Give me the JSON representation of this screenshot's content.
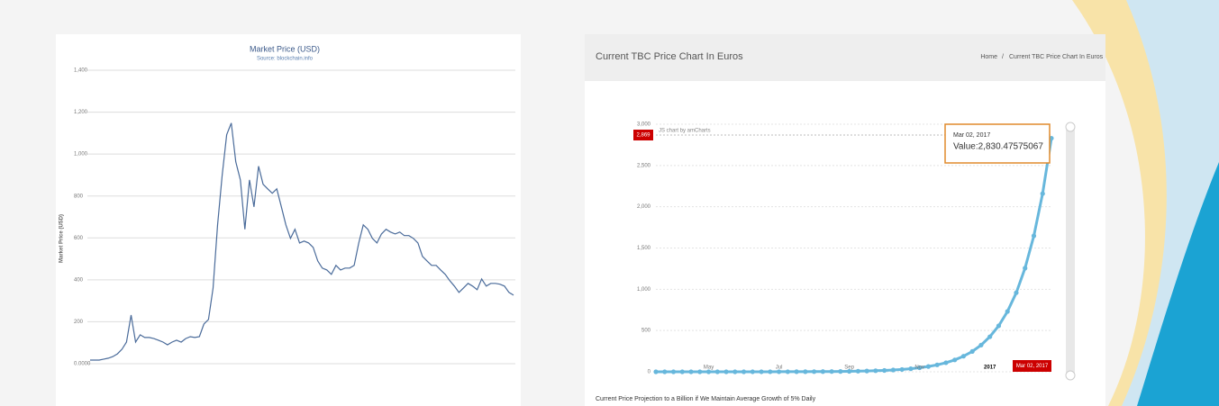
{
  "header": {
    "title": "Current TBC Price Chart In Euros",
    "breadcrumb": [
      "Home",
      "/",
      "Current TBC Price Chart In Euros"
    ]
  },
  "caption": "Current Price Projection to a Billion if We Maintain Average Growth of 5% Daily",
  "chart_data": [
    {
      "type": "line",
      "title": "Market Price (USD)",
      "subtitle": "Source: blockchain.info",
      "y_label": "Market Price (USD)",
      "color": "#4a6b9a",
      "grid": true,
      "ylim": [
        0,
        1400
      ],
      "yticks": [
        {
          "value": 0,
          "label": "0.0000"
        },
        200,
        400,
        600,
        800,
        {
          "value": 1000,
          "label": "1,000"
        },
        {
          "value": 1200,
          "label": "1,200"
        },
        {
          "value": 1400,
          "label": "1,400"
        }
      ],
      "values": [
        17,
        17,
        17,
        22,
        26,
        34,
        47,
        69,
        103,
        232,
        103,
        138,
        125,
        125,
        120,
        112,
        103,
        90,
        103,
        112,
        103,
        120,
        129,
        125,
        129,
        189,
        211,
        361,
        662,
        899,
        1092,
        1148,
        963,
        877,
        641,
        877,
        748,
        942,
        856,
        834,
        813,
        834,
        748,
        662,
        598,
        641,
        576,
        585,
        576,
        555,
        490,
        456,
        447,
        426,
        469,
        447,
        456,
        456,
        469,
        576,
        662,
        641,
        598,
        576,
        619,
        641,
        628,
        619,
        628,
        611,
        611,
        598,
        576,
        512,
        490,
        469,
        469,
        447,
        426,
        396,
        370,
        340,
        361,
        383,
        370,
        353,
        404,
        370,
        383,
        383,
        379,
        370,
        340,
        327
      ]
    },
    {
      "type": "line",
      "credit": "JS chart by amCharts",
      "color": "#67b7dc",
      "markers": true,
      "grid": true,
      "ylim": [
        0,
        3000
      ],
      "yticks": [
        0,
        500,
        {
          "value": 1000,
          "label": "1,000"
        },
        {
          "value": 1500,
          "label": "1,500"
        },
        {
          "value": 2000,
          "label": "2,000"
        },
        {
          "value": 2500,
          "label": "2,500"
        },
        {
          "value": 3000,
          "label": "3,000"
        }
      ],
      "categories": [
        null,
        null,
        null,
        null,
        null,
        null,
        "May",
        null,
        null,
        null,
        null,
        null,
        null,
        null,
        "Jul",
        null,
        null,
        null,
        null,
        null,
        null,
        null,
        "Sep",
        null,
        null,
        null,
        null,
        null,
        null,
        null,
        "Nov",
        null,
        null,
        null,
        null,
        null,
        null,
        null,
        "2017",
        null,
        null,
        null,
        null,
        null,
        null,
        "Mar 02, 2017"
      ],
      "values": [
        0.01,
        0.02,
        0.03,
        0.03,
        0.04,
        0.06,
        0.08,
        0.1,
        0.13,
        0.17,
        0.22,
        0.29,
        0.38,
        0.5,
        0.65,
        0.9,
        1.1,
        1.5,
        1.9,
        2.5,
        3.3,
        4.3,
        5.6,
        7.4,
        9.7,
        12.7,
        16.6,
        22,
        28,
        37,
        49,
        64,
        84,
        110,
        144,
        189,
        247,
        324,
        425,
        557,
        731,
        958,
        1256,
        1647,
        2159,
        2830.47575067
      ],
      "cursor_value": {
        "value": 2869,
        "label": "2,869"
      },
      "tooltip": {
        "date": "Mar 02, 2017",
        "text": "Value:2,830.47575067"
      }
    }
  ]
}
